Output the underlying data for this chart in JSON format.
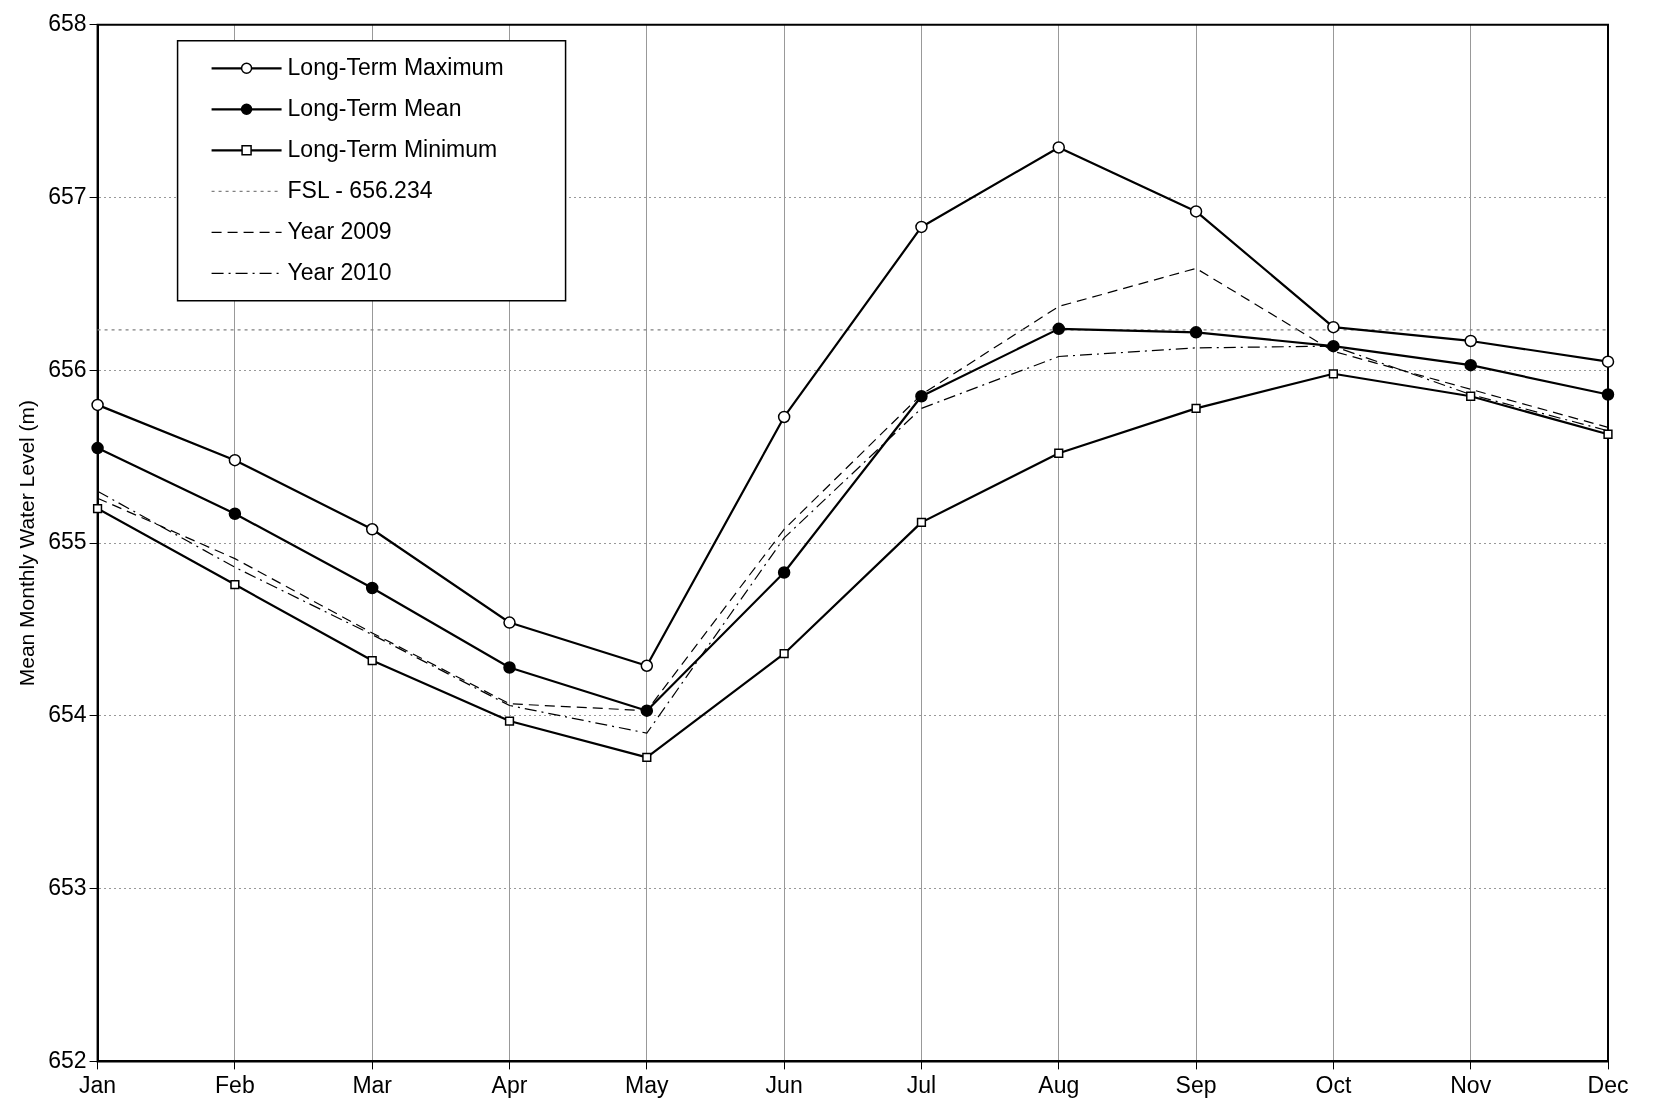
{
  "chart_data": {
    "type": "line",
    "ylabel": "Mean Monthly Water Level (m)",
    "categories": [
      "Jan",
      "Feb",
      "Mar",
      "Apr",
      "May",
      "Jun",
      "Jul",
      "Aug",
      "Sep",
      "Oct",
      "Nov",
      "Dec"
    ],
    "ylim": [
      652,
      658
    ],
    "yticks": [
      652,
      653,
      654,
      655,
      656,
      657,
      658
    ],
    "grid": true,
    "legend": "top left",
    "series": [
      {
        "name": "Long-Term Maximum",
        "color": "#000000",
        "marker": "circle",
        "line_style": "solid",
        "values": [
          655.8,
          655.48,
          655.08,
          654.54,
          654.29,
          655.73,
          656.83,
          657.29,
          656.92,
          656.25,
          656.17,
          656.05
        ]
      },
      {
        "name": "Long-Term Mean",
        "color": "#000000",
        "marker": "circle",
        "line_style": "solid",
        "values": [
          655.55,
          655.17,
          654.74,
          654.28,
          654.03,
          654.83,
          655.85,
          656.24,
          656.22,
          656.14,
          656.03,
          655.86
        ]
      },
      {
        "name": "Long-Term Minimum",
        "color": "#000000",
        "marker": "square",
        "line_style": "solid",
        "values": [
          655.2,
          654.76,
          654.32,
          653.97,
          653.76,
          654.36,
          655.12,
          655.52,
          655.78,
          655.98,
          655.85,
          655.63
        ]
      },
      {
        "name": "FSL - 656.234",
        "color": "#808080",
        "marker": "none",
        "line_style": "dotted",
        "values": [
          656.234,
          656.234,
          656.234,
          656.234,
          656.234,
          656.234,
          656.234,
          656.234,
          656.234,
          656.234,
          656.234,
          656.234
        ]
      },
      {
        "name": "Year 2009",
        "color": "#000000",
        "marker": "none",
        "line_style": "dashed",
        "values": [
          655.26,
          654.91,
          654.48,
          654.07,
          654.03,
          655.08,
          655.86,
          656.37,
          656.59,
          656.11,
          655.89,
          655.67
        ]
      },
      {
        "name": "Year 2010",
        "color": "#000000",
        "marker": "none",
        "line_style": "dashdot",
        "values": [
          655.3,
          654.86,
          654.47,
          654.06,
          653.9,
          655.03,
          655.78,
          656.08,
          656.13,
          656.14,
          655.86,
          655.65
        ]
      }
    ]
  }
}
